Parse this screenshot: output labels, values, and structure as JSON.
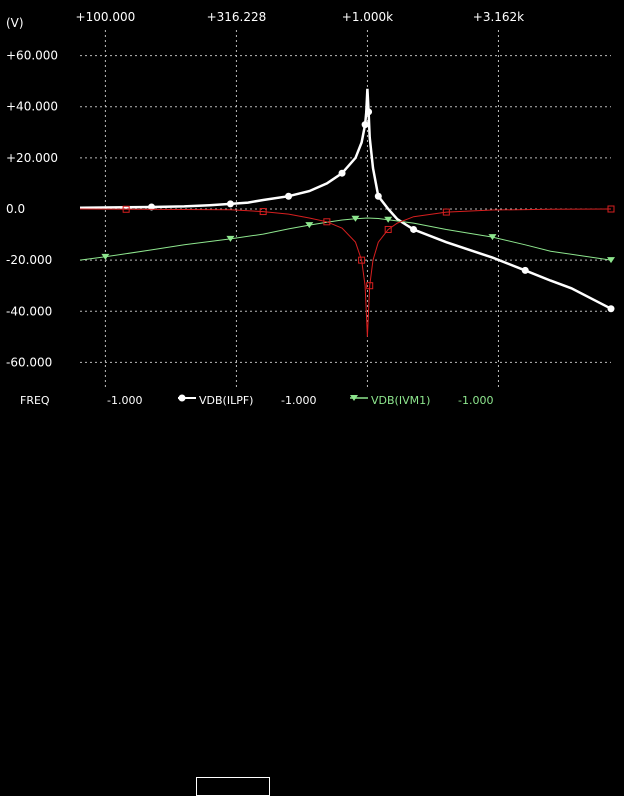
{
  "chart_data": {
    "type": "line",
    "x_scale": "log",
    "xlim": [
      80,
      8500
    ],
    "ylim": [
      -70,
      70
    ],
    "x_ticks": [
      100,
      316.228,
      1000,
      3162
    ],
    "x_tick_labels": [
      "+100.000",
      "+316.228",
      "+1.000k",
      "+3.162k"
    ],
    "y_ticks": [
      60,
      40,
      20,
      0,
      -20,
      -40,
      -60
    ],
    "y_tick_labels": [
      "+60.000",
      "+40.000",
      "+20.000",
      "0.0",
      "-20.000",
      "-40.000",
      "-60.000"
    ],
    "ylabel": "(V)",
    "grid": true,
    "series": [
      {
        "name": "VDB(ILPF)",
        "color": "#ffffff",
        "marker": "circle",
        "x": [
          80,
          150,
          200,
          250,
          300,
          350,
          400,
          500,
          600,
          700,
          800,
          900,
          950,
          980,
          990,
          1000,
          1010,
          1020,
          1050,
          1100,
          1200,
          1300,
          1500,
          2000,
          3000,
          4000,
          5000,
          6000,
          8500
        ],
        "y": [
          0.5,
          0.8,
          1,
          1.5,
          2,
          2.5,
          3.5,
          5,
          7,
          10,
          14,
          20,
          26,
          33,
          38,
          47,
          38,
          28,
          16,
          5,
          0,
          -4,
          -8,
          -13,
          -19,
          -24,
          -28,
          -31,
          -39
        ]
      },
      {
        "name": "VDB(IVM1)",
        "color": "#8ee68e",
        "marker": "triangle-down",
        "x": [
          80,
          100,
          150,
          200,
          300,
          400,
          500,
          600,
          700,
          800,
          900,
          1000,
          1100,
          1200,
          1500,
          2000,
          3000,
          4000,
          5000,
          8500
        ],
        "y": [
          -20,
          -18.7,
          -16,
          -14,
          -11.7,
          -9.8,
          -7.8,
          -6.3,
          -5.2,
          -4.3,
          -3.8,
          -3.5,
          -3.7,
          -4.2,
          -5.5,
          -8,
          -11,
          -14,
          -16.5,
          -20
        ]
      },
      {
        "name": "",
        "color": "#d61f1f",
        "marker": "square",
        "x": [
          80,
          120,
          200,
          300,
          400,
          500,
          600,
          700,
          800,
          900,
          950,
          980,
          1000,
          1020,
          1050,
          1100,
          1200,
          1300,
          1500,
          2000,
          3000,
          5000,
          8500
        ],
        "y": [
          0,
          -0.1,
          -0.2,
          -0.3,
          -1,
          -2,
          -3.5,
          -5,
          -7.5,
          -13,
          -20,
          -30,
          -50,
          -30,
          -20,
          -13,
          -8,
          -5.5,
          -3,
          -1.2,
          -0.4,
          -0.1,
          0
        ]
      }
    ]
  },
  "footer": {
    "freq_label": "FREQ",
    "values": [
      "-1.000",
      "-1.000",
      "-1.000"
    ],
    "legend": [
      "VDB(ILPF)",
      "VDB(IVM1)"
    ]
  }
}
